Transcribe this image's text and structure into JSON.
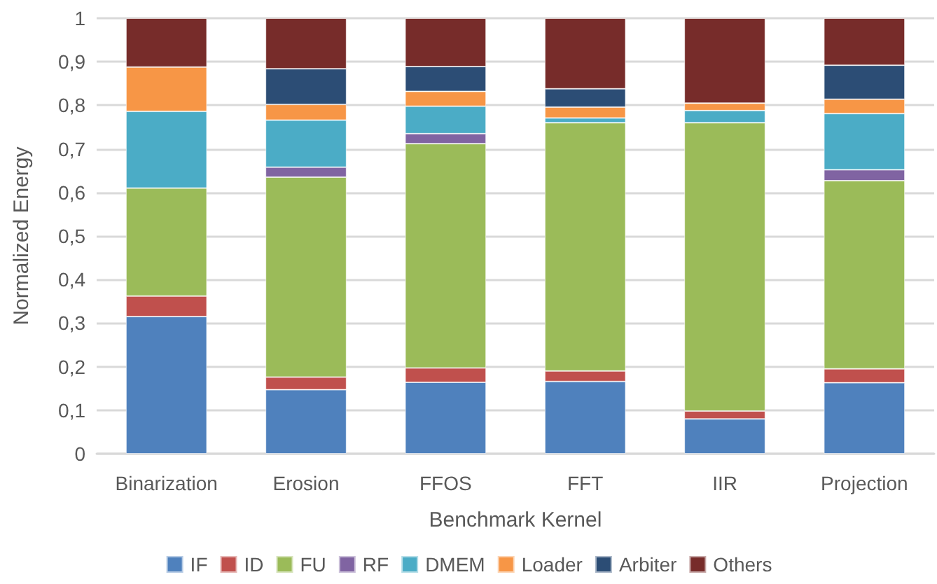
{
  "chart_data": {
    "type": "bar",
    "stacked": true,
    "xlabel": "Benchmark Kernel",
    "ylabel": "Normalized Energy",
    "categories": [
      "Binarization",
      "Erosion",
      "FFOS",
      "FFT",
      "IIR",
      "Projection"
    ],
    "series": [
      {
        "name": "IF",
        "color": "#4f81bd",
        "values": [
          0.315,
          0.147,
          0.164,
          0.166,
          0.08,
          0.163
        ]
      },
      {
        "name": "ID",
        "color": "#c0504d",
        "values": [
          0.047,
          0.029,
          0.033,
          0.024,
          0.018,
          0.032
        ]
      },
      {
        "name": "FU",
        "color": "#9bbb59",
        "values": [
          0.248,
          0.459,
          0.515,
          0.57,
          0.662,
          0.432
        ]
      },
      {
        "name": "RF",
        "color": "#8064a2",
        "values": [
          0,
          0.023,
          0.023,
          0,
          0,
          0.025
        ]
      },
      {
        "name": "DMEM",
        "color": "#4bacc6",
        "values": [
          0.176,
          0.108,
          0.063,
          0.011,
          0.028,
          0.129
        ]
      },
      {
        "name": "Loader",
        "color": "#f79646",
        "values": [
          0.102,
          0.036,
          0.034,
          0.025,
          0.017,
          0.033
        ]
      },
      {
        "name": "Arbiter",
        "color": "#2c4d75",
        "values": [
          0,
          0.082,
          0.057,
          0.042,
          0,
          0.078
        ]
      },
      {
        "name": "Others",
        "color": "#772c2a",
        "values": [
          0.112,
          0.116,
          0.111,
          0.162,
          0.195,
          0.108
        ]
      }
    ],
    "ylim": [
      0,
      1
    ],
    "yticks": [
      0,
      {
        "value": 0.1,
        "label": "0,1"
      },
      {
        "value": 0.2,
        "label": "0,2"
      },
      {
        "value": 0.3,
        "label": "0,3"
      },
      {
        "value": 0.4,
        "label": "0,4"
      },
      {
        "value": 0.5,
        "label": "0,5"
      },
      {
        "value": 0.6,
        "label": "0,6"
      },
      {
        "value": 0.7,
        "label": "0,7"
      },
      {
        "value": 0.8,
        "label": "0,8"
      },
      {
        "value": 0.9,
        "label": "0,9"
      },
      1
    ],
    "grid": "y",
    "legend": "bottom"
  }
}
